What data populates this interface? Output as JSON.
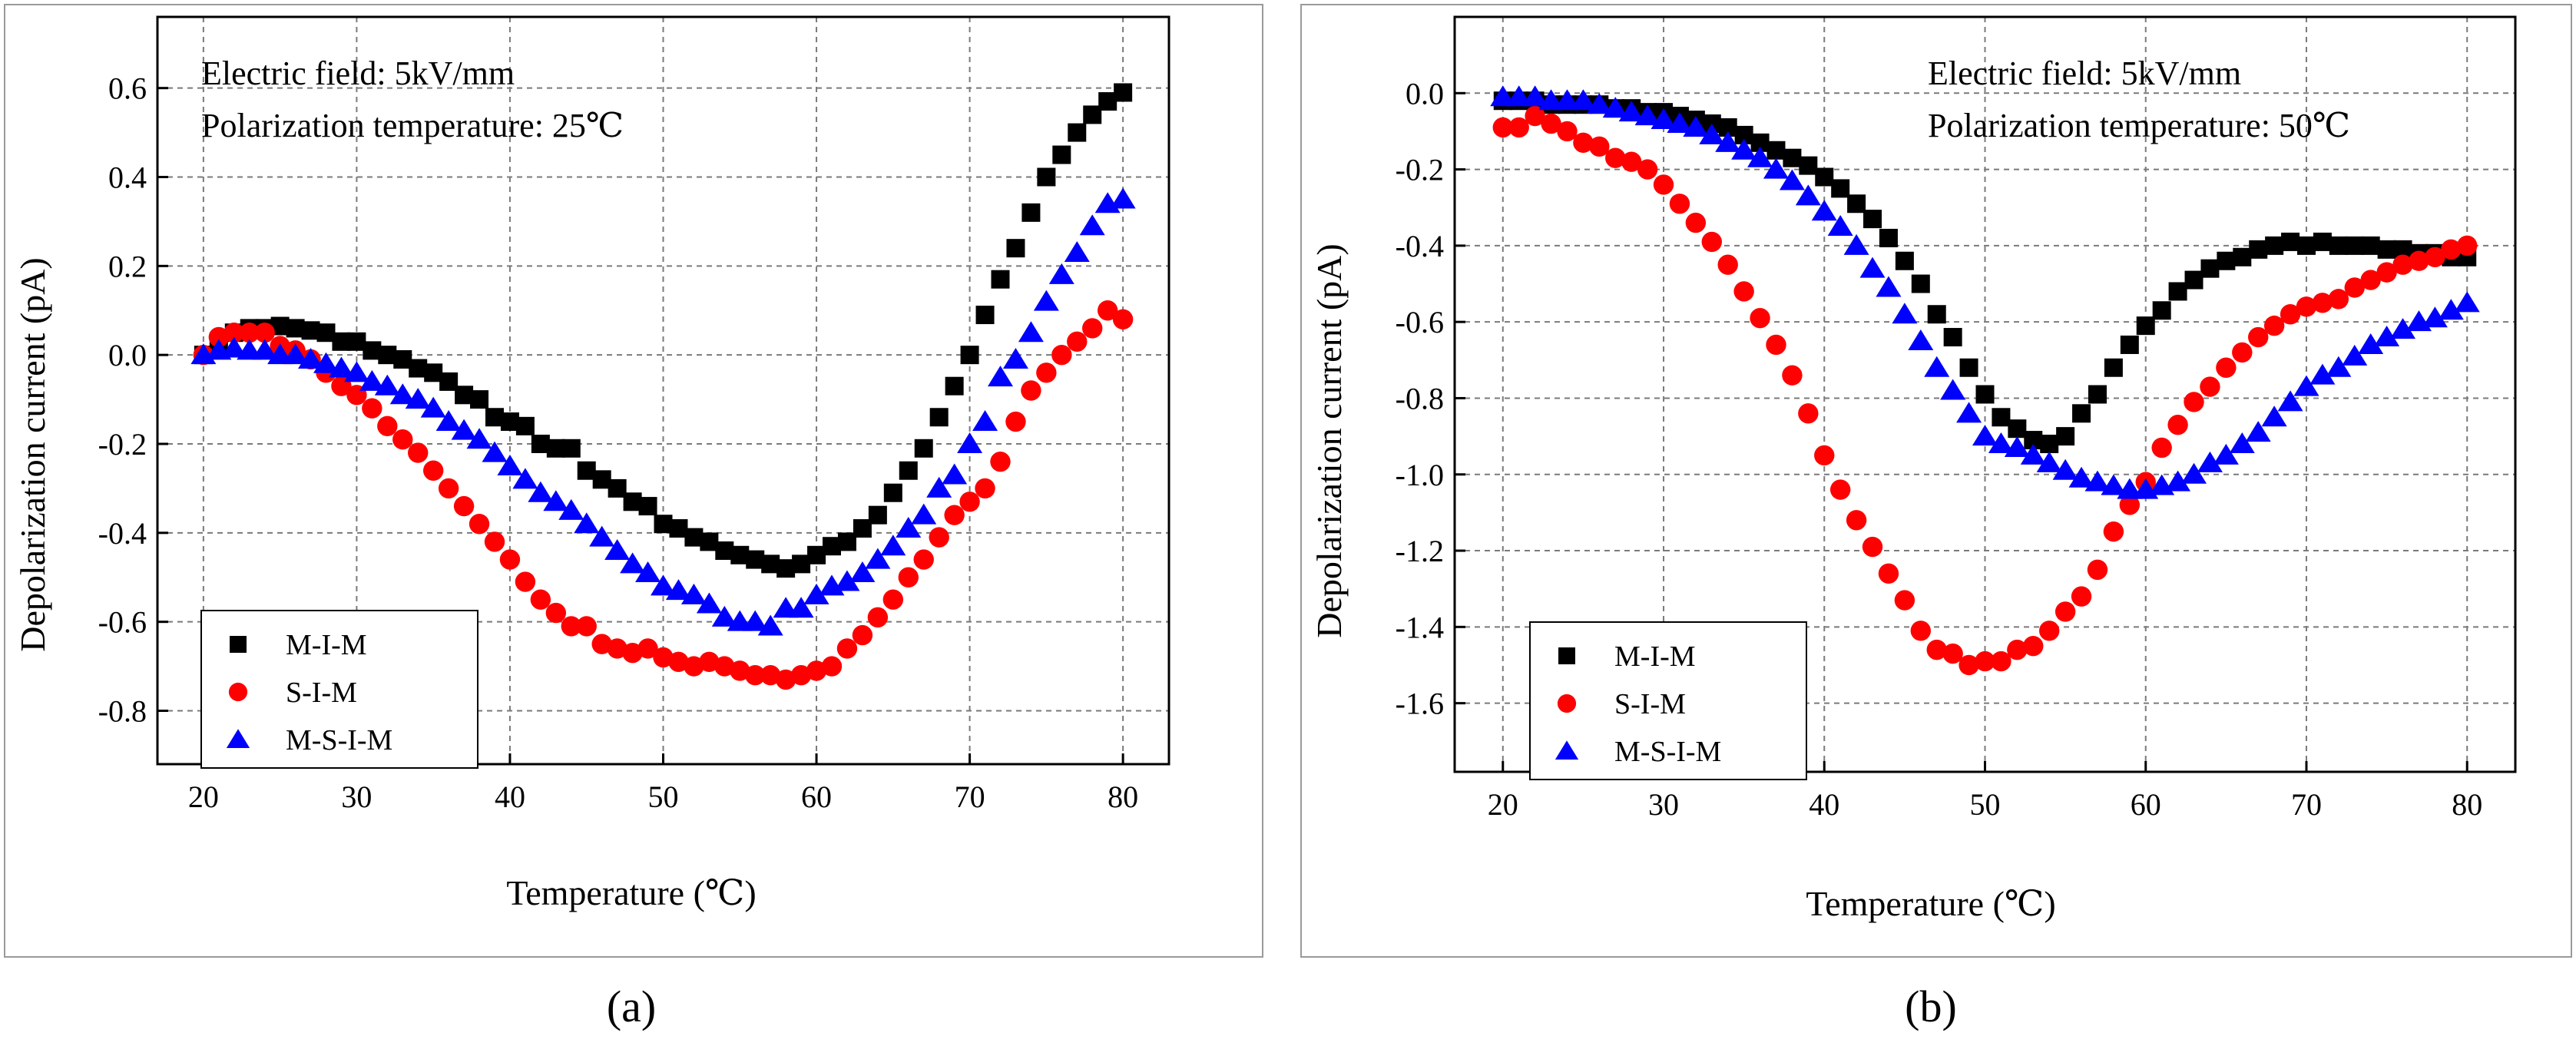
{
  "chart_data": [
    {
      "type": "scatter",
      "panel_label": "(a)",
      "xlabel": "Temperature (℃)",
      "ylabel": "Depolarization current (pA)",
      "xlim": [
        17,
        83
      ],
      "ylim": [
        -0.92,
        0.76
      ],
      "xticks": [
        20,
        30,
        40,
        50,
        60,
        70,
        80
      ],
      "yticks": [
        -0.8,
        -0.6,
        -0.4,
        -0.2,
        0.0,
        0.2,
        0.4,
        0.6
      ],
      "ytick_labels": [
        "-0.8",
        "-0.6",
        "-0.4",
        "-0.2",
        "0.0",
        "0.2",
        "0.4",
        "0.6"
      ],
      "grid": true,
      "annotations": [
        "Electric field: 5kV/mm",
        "Polarization temperature: 25℃"
      ],
      "legend_position": "lower-left",
      "x": [
        20,
        21,
        22,
        23,
        24,
        25,
        26,
        27,
        28,
        29,
        30,
        31,
        32,
        33,
        34,
        35,
        36,
        37,
        38,
        39,
        40,
        41,
        42,
        43,
        44,
        45,
        46,
        47,
        48,
        49,
        50,
        51,
        52,
        53,
        54,
        55,
        56,
        57,
        58,
        59,
        60,
        61,
        62,
        63,
        64,
        65,
        66,
        67,
        68,
        69,
        70,
        71,
        72,
        73,
        74,
        75,
        76,
        77,
        78,
        79,
        80
      ],
      "series": [
        {
          "name": "M-I-M",
          "marker": "square",
          "color": "#000000",
          "values": [
            0.0,
            0.03,
            0.05,
            0.06,
            0.06,
            0.065,
            0.06,
            0.055,
            0.05,
            0.03,
            0.03,
            0.01,
            0.0,
            -0.01,
            -0.03,
            -0.04,
            -0.06,
            -0.09,
            -0.1,
            -0.14,
            -0.15,
            -0.16,
            -0.2,
            -0.21,
            -0.21,
            -0.26,
            -0.28,
            -0.3,
            -0.33,
            -0.34,
            -0.38,
            -0.39,
            -0.41,
            -0.42,
            -0.44,
            -0.45,
            -0.46,
            -0.47,
            -0.48,
            -0.47,
            -0.45,
            -0.43,
            -0.42,
            -0.39,
            -0.36,
            -0.31,
            -0.26,
            -0.21,
            -0.14,
            -0.07,
            0.0,
            0.09,
            0.17,
            0.24,
            0.32,
            0.4,
            0.45,
            0.5,
            0.54,
            0.57,
            0.59
          ]
        },
        {
          "name": "S-I-M",
          "marker": "circle",
          "color": "#ff0000",
          "values": [
            0.0,
            0.04,
            0.05,
            0.05,
            0.05,
            0.02,
            0.01,
            -0.01,
            -0.04,
            -0.07,
            -0.09,
            -0.12,
            -0.16,
            -0.19,
            -0.22,
            -0.26,
            -0.3,
            -0.34,
            -0.38,
            -0.42,
            -0.46,
            -0.51,
            -0.55,
            -0.58,
            -0.61,
            -0.61,
            -0.65,
            -0.66,
            -0.67,
            -0.66,
            -0.68,
            -0.69,
            -0.7,
            -0.69,
            -0.7,
            -0.71,
            -0.72,
            -0.72,
            -0.73,
            -0.72,
            -0.71,
            -0.7,
            -0.66,
            -0.63,
            -0.59,
            -0.55,
            -0.5,
            -0.46,
            -0.41,
            -0.36,
            -0.33,
            -0.3,
            -0.24,
            -0.15,
            -0.08,
            -0.04,
            0.0,
            0.03,
            0.06,
            0.1,
            0.08
          ]
        },
        {
          "name": "M-S-I-M",
          "marker": "triangle",
          "color": "#0000ff",
          "values": [
            0.0,
            0.01,
            0.015,
            0.01,
            0.01,
            0.0,
            0.0,
            -0.01,
            -0.02,
            -0.03,
            -0.04,
            -0.06,
            -0.07,
            -0.09,
            -0.1,
            -0.12,
            -0.15,
            -0.17,
            -0.19,
            -0.22,
            -0.25,
            -0.28,
            -0.31,
            -0.33,
            -0.35,
            -0.38,
            -0.41,
            -0.44,
            -0.47,
            -0.49,
            -0.52,
            -0.53,
            -0.54,
            -0.56,
            -0.59,
            -0.6,
            -0.6,
            -0.61,
            -0.57,
            -0.57,
            -0.54,
            -0.52,
            -0.51,
            -0.49,
            -0.46,
            -0.43,
            -0.39,
            -0.36,
            -0.3,
            -0.27,
            -0.2,
            -0.15,
            -0.05,
            -0.01,
            0.05,
            0.12,
            0.18,
            0.23,
            0.29,
            0.34,
            0.35
          ]
        }
      ]
    },
    {
      "type": "scatter",
      "panel_label": "(b)",
      "xlabel": "Temperature (℃)",
      "ylabel": "Depolarization current (pA)",
      "xlim": [
        17,
        83
      ],
      "ylim": [
        -1.78,
        0.2
      ],
      "xticks": [
        20,
        30,
        40,
        50,
        60,
        70,
        80
      ],
      "yticks": [
        -1.6,
        -1.4,
        -1.2,
        -1.0,
        -0.8,
        -0.6,
        -0.4,
        -0.2,
        0.0
      ],
      "ytick_labels": [
        "-1.6",
        "-1.4",
        "-1.2",
        "-1.0",
        "-0.8",
        "-0.6",
        "-0.4",
        "-0.2",
        "0.0"
      ],
      "grid": true,
      "annotations": [
        "Electric field: 5kV/mm",
        "Polarization temperature: 50℃"
      ],
      "legend_position": "lower-left",
      "x": [
        20,
        21,
        22,
        23,
        24,
        25,
        26,
        27,
        28,
        29,
        30,
        31,
        32,
        33,
        34,
        35,
        36,
        37,
        38,
        39,
        40,
        41,
        42,
        43,
        44,
        45,
        46,
        47,
        48,
        49,
        50,
        51,
        52,
        53,
        54,
        55,
        56,
        57,
        58,
        59,
        60,
        61,
        62,
        63,
        64,
        65,
        66,
        67,
        68,
        69,
        70,
        71,
        72,
        73,
        74,
        75,
        76,
        77,
        78,
        79,
        80
      ],
      "series": [
        {
          "name": "M-I-M",
          "marker": "square",
          "color": "#000000",
          "values": [
            -0.02,
            -0.02,
            -0.02,
            -0.03,
            -0.03,
            -0.03,
            -0.03,
            -0.04,
            -0.04,
            -0.05,
            -0.05,
            -0.06,
            -0.07,
            -0.08,
            -0.09,
            -0.11,
            -0.13,
            -0.15,
            -0.17,
            -0.19,
            -0.22,
            -0.25,
            -0.29,
            -0.33,
            -0.38,
            -0.44,
            -0.5,
            -0.58,
            -0.64,
            -0.72,
            -0.79,
            -0.85,
            -0.88,
            -0.91,
            -0.92,
            -0.9,
            -0.84,
            -0.79,
            -0.72,
            -0.66,
            -0.61,
            -0.57,
            -0.52,
            -0.49,
            -0.46,
            -0.44,
            -0.43,
            -0.41,
            -0.4,
            -0.39,
            -0.4,
            -0.39,
            -0.4,
            -0.4,
            -0.4,
            -0.41,
            -0.41,
            -0.42,
            -0.42,
            -0.43,
            -0.43
          ]
        },
        {
          "name": "S-I-M",
          "marker": "circle",
          "color": "#ff0000",
          "values": [
            -0.09,
            -0.09,
            -0.06,
            -0.08,
            -0.1,
            -0.13,
            -0.14,
            -0.17,
            -0.18,
            -0.2,
            -0.24,
            -0.29,
            -0.34,
            -0.39,
            -0.45,
            -0.52,
            -0.59,
            -0.66,
            -0.74,
            -0.84,
            -0.95,
            -1.04,
            -1.12,
            -1.19,
            -1.26,
            -1.33,
            -1.41,
            -1.46,
            -1.47,
            -1.5,
            -1.49,
            -1.49,
            -1.46,
            -1.45,
            -1.41,
            -1.36,
            -1.32,
            -1.25,
            -1.15,
            -1.08,
            -1.02,
            -0.93,
            -0.87,
            -0.81,
            -0.77,
            -0.72,
            -0.68,
            -0.64,
            -0.61,
            -0.58,
            -0.56,
            -0.55,
            -0.54,
            -0.51,
            -0.49,
            -0.47,
            -0.45,
            -0.44,
            -0.43,
            -0.41,
            -0.4
          ]
        },
        {
          "name": "M-S-I-M",
          "marker": "triangle",
          "color": "#0000ff",
          "values": [
            -0.01,
            -0.01,
            -0.01,
            -0.02,
            -0.02,
            -0.02,
            -0.03,
            -0.04,
            -0.05,
            -0.06,
            -0.07,
            -0.08,
            -0.09,
            -0.11,
            -0.13,
            -0.15,
            -0.17,
            -0.2,
            -0.23,
            -0.27,
            -0.31,
            -0.35,
            -0.4,
            -0.46,
            -0.51,
            -0.58,
            -0.65,
            -0.72,
            -0.78,
            -0.84,
            -0.9,
            -0.92,
            -0.93,
            -0.95,
            -0.97,
            -0.99,
            -1.01,
            -1.02,
            -1.03,
            -1.04,
            -1.04,
            -1.03,
            -1.02,
            -1.0,
            -0.97,
            -0.95,
            -0.92,
            -0.89,
            -0.85,
            -0.81,
            -0.77,
            -0.74,
            -0.72,
            -0.69,
            -0.66,
            -0.64,
            -0.62,
            -0.6,
            -0.59,
            -0.57,
            -0.55
          ]
        }
      ]
    }
  ]
}
